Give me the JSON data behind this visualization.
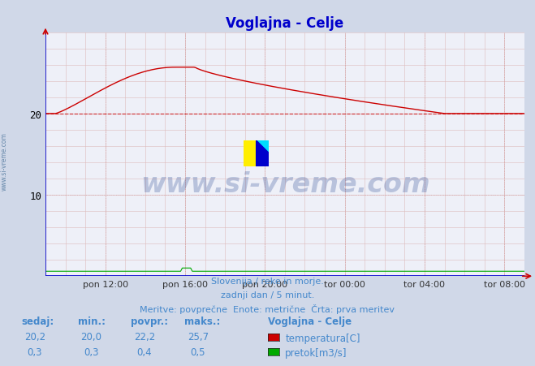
{
  "title": "Voglajna - Celje",
  "title_color": "#0000cc",
  "bg_color": "#d0d8e8",
  "plot_bg_color": "#eef0f8",
  "grid_color_major": "#c8ccd8",
  "grid_color_dashed": "#cc8888",
  "x_tick_labels": [
    "pon 12:00",
    "pon 16:00",
    "pon 20:00",
    "tor 00:00",
    "tor 04:00",
    "tor 08:00"
  ],
  "x_tick_positions": [
    3,
    7,
    11,
    15,
    19,
    23
  ],
  "y_min": 0,
  "y_max": 30,
  "y_ticks": [
    10,
    20
  ],
  "temp_color": "#cc0000",
  "flow_color": "#00aa00",
  "avg_line_value": 20.0,
  "avg_line_color": "#cc0000",
  "watermark_text": "www.si-vreme.com",
  "watermark_color": "#1a3a8a",
  "watermark_alpha": 0.25,
  "side_text": "www.si-vreme.com",
  "side_text_color": "#6688aa",
  "footer_line1": "Slovenija / reke in morje.",
  "footer_line2": "zadnji dan / 5 minut.",
  "footer_line3": "Meritve: povprečne  Enote: metrične  Črta: prva meritev",
  "footer_color": "#4488cc",
  "legend_title": "Voglajna - Celje",
  "legend_items": [
    "temperatura[C]",
    "pretok[m3/s]"
  ],
  "legend_colors": [
    "#cc0000",
    "#00aa00"
  ],
  "table_headers": [
    "sedaj:",
    "min.:",
    "povpr.:",
    "maks.:"
  ],
  "table_temp": [
    "20,2",
    "20,0",
    "22,2",
    "25,7"
  ],
  "table_flow": [
    "0,3",
    "0,3",
    "0,4",
    "0,5"
  ],
  "table_color": "#4488cc",
  "axis_color": "#0000cc",
  "arrow_color": "#cc0000"
}
